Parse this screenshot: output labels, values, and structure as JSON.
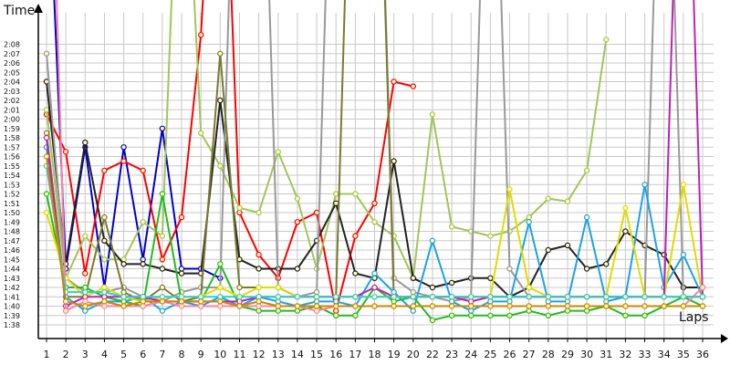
{
  "chart_data": {
    "type": "line",
    "ylabel": "Time",
    "xlabel": "Laps",
    "x_ticks": [
      "1",
      "2",
      "3",
      "4",
      "5",
      "6",
      "7",
      "8",
      "9",
      "10",
      "11",
      "12",
      "13",
      "14",
      "15",
      "16",
      "17",
      "18",
      "19",
      "20",
      "22",
      "23",
      "24",
      "25",
      "26",
      "27",
      "28",
      "29",
      "30",
      "31",
      "32",
      "33",
      "34",
      "35",
      "36"
    ],
    "y_ticks": [
      "1:38",
      "1:39",
      "1:40",
      "1:41",
      "1:42",
      "1:43",
      "1:44",
      "1:45",
      "1:46",
      "1:47",
      "1:48",
      "1:49",
      "1:50",
      "1:51",
      "1:52",
      "1:53",
      "1:54",
      "1:55",
      "1:56",
      "1:57",
      "1:58",
      "1:59",
      "2:00",
      "2:01",
      "2:02",
      "2:03",
      "2:04",
      "2:05",
      "2:06",
      "2:07",
      "2:08"
    ],
    "ylim_seconds": [
      97.5,
      130
    ],
    "grid": true,
    "series": [
      {
        "color": "#0000cc",
        "values": [
          152,
          104,
          117,
          102,
          117,
          105,
          119,
          104,
          104,
          103,
          null,
          null,
          null,
          null,
          null,
          null,
          null,
          null,
          null,
          null,
          null,
          null,
          null,
          null,
          null,
          null,
          null,
          null,
          null,
          null,
          null,
          null,
          null,
          null,
          null
        ]
      },
      {
        "color": "#ff0000",
        "values": [
          120.5,
          116.5,
          103.5,
          114.5,
          115.5,
          114.5,
          105,
          109.5,
          129,
          165,
          110,
          105.5,
          103,
          109,
          110,
          99.5,
          107.5,
          111,
          124,
          123.5,
          null,
          null,
          null,
          null,
          null,
          null,
          null,
          null,
          null,
          null,
          null,
          null,
          null,
          null,
          null
        ]
      },
      {
        "color": "#a3c45b",
        "values": [
          121,
          103,
          107.5,
          105,
          105,
          109,
          107.5,
          160,
          118.5,
          115,
          110.5,
          110,
          116.5,
          111.5,
          104,
          112,
          112,
          109,
          107.5,
          103,
          120.5,
          108.5,
          108,
          107.5,
          108,
          109.5,
          111.5,
          111.2,
          114.5,
          128.5,
          null,
          null,
          null,
          null,
          null
        ]
      },
      {
        "color": "#222222",
        "values": [
          124,
          104.5,
          117.5,
          107,
          104.5,
          104.5,
          104,
          103.5,
          103.5,
          122,
          105,
          104,
          104,
          104,
          107,
          111,
          103.5,
          103,
          115.5,
          103,
          102,
          102.5,
          103,
          103,
          101,
          102,
          106,
          106.5,
          104,
          104.5,
          108,
          106.5,
          105.5,
          102,
          102
        ]
      },
      {
        "color": "#999999",
        "values": [
          127,
          103,
          101.5,
          101.5,
          102,
          101,
          100.5,
          101.5,
          102,
          102,
          170,
          170,
          102,
          101,
          101.5,
          170,
          170,
          170,
          103,
          101.5,
          101,
          100.5,
          101,
          170,
          104,
          101,
          101,
          101,
          101,
          101,
          101,
          101,
          170,
          101,
          101
        ]
      },
      {
        "color": "#7a7a30",
        "values": [
          118.5,
          101,
          101,
          109.5,
          101.5,
          100.5,
          102,
          100.5,
          101,
          127,
          102,
          102,
          102,
          101,
          101,
          101,
          170,
          170,
          101,
          101,
          101,
          101,
          101,
          101,
          101,
          101,
          101,
          101,
          101,
          101,
          101,
          101,
          101,
          101,
          101
        ]
      },
      {
        "color": "#1aa3e6",
        "values": [
          117,
          101,
          99.5,
          100.5,
          100.5,
          101,
          99.5,
          100.5,
          100,
          101,
          100,
          101,
          100.5,
          100,
          100.5,
          100.5,
          100,
          103.5,
          101.5,
          99.5,
          107,
          100.5,
          99.5,
          100.5,
          100.5,
          109,
          100.5,
          100.5,
          109.5,
          100.5,
          101,
          113,
          102,
          105.5,
          101
        ]
      },
      {
        "color": "#22bb22",
        "values": [
          112,
          102,
          102,
          101,
          100.5,
          100,
          112,
          100.5,
          100.5,
          104.5,
          100,
          99.5,
          99.5,
          99.5,
          100,
          99,
          99,
          102,
          100.5,
          101,
          98.5,
          99,
          99,
          99,
          99,
          99.5,
          99,
          99.5,
          99.5,
          100,
          99,
          99,
          100,
          101,
          100
        ]
      },
      {
        "color": "#dddd00",
        "values": [
          110,
          103,
          101,
          102,
          101,
          100.5,
          101,
          101,
          101,
          102,
          101,
          102,
          102,
          101,
          101,
          101,
          101,
          101,
          101,
          101,
          101,
          101,
          101,
          101,
          112.5,
          102,
          101,
          101,
          101,
          101,
          110.5,
          101,
          101,
          113,
          101
        ]
      },
      {
        "color": "#bb22bb",
        "values": [
          118,
          100,
          101,
          101,
          101,
          101,
          100.5,
          100.5,
          100.5,
          100.5,
          100.5,
          101,
          101,
          101,
          101,
          101,
          101,
          102,
          101,
          101,
          101,
          101,
          100.5,
          101,
          101,
          101,
          101,
          101,
          101,
          101,
          101,
          101,
          101,
          170,
          101
        ]
      },
      {
        "color": "#ff80a0",
        "values": [
          170,
          99.5,
          100.5,
          100,
          100,
          100,
          100.5,
          100,
          100,
          100,
          100,
          100,
          100,
          100,
          99.5,
          100,
          100,
          100,
          100,
          100,
          100,
          100,
          100,
          100,
          100,
          100,
          100,
          100,
          100,
          100,
          100,
          100,
          100,
          100,
          102
        ]
      },
      {
        "color": "#33cccc",
        "values": [
          115,
          101.5,
          101.5,
          101.5,
          101,
          101,
          101,
          101,
          101,
          101,
          101,
          101,
          101,
          101,
          101,
          101,
          101,
          101,
          101,
          101,
          101,
          101,
          101,
          101,
          101,
          101,
          101,
          101,
          101,
          101,
          101,
          101,
          101,
          101,
          101
        ]
      },
      {
        "color": "#cc8800",
        "values": [
          116,
          100.5,
          100,
          100.5,
          100,
          100.5,
          100.5,
          100.5,
          100.5,
          100.5,
          100,
          100.5,
          100,
          100,
          100,
          100,
          100,
          100,
          100,
          100,
          100,
          100,
          100,
          100,
          100,
          100,
          100,
          100,
          100,
          100,
          100,
          100,
          100,
          100,
          100
        ]
      }
    ]
  }
}
